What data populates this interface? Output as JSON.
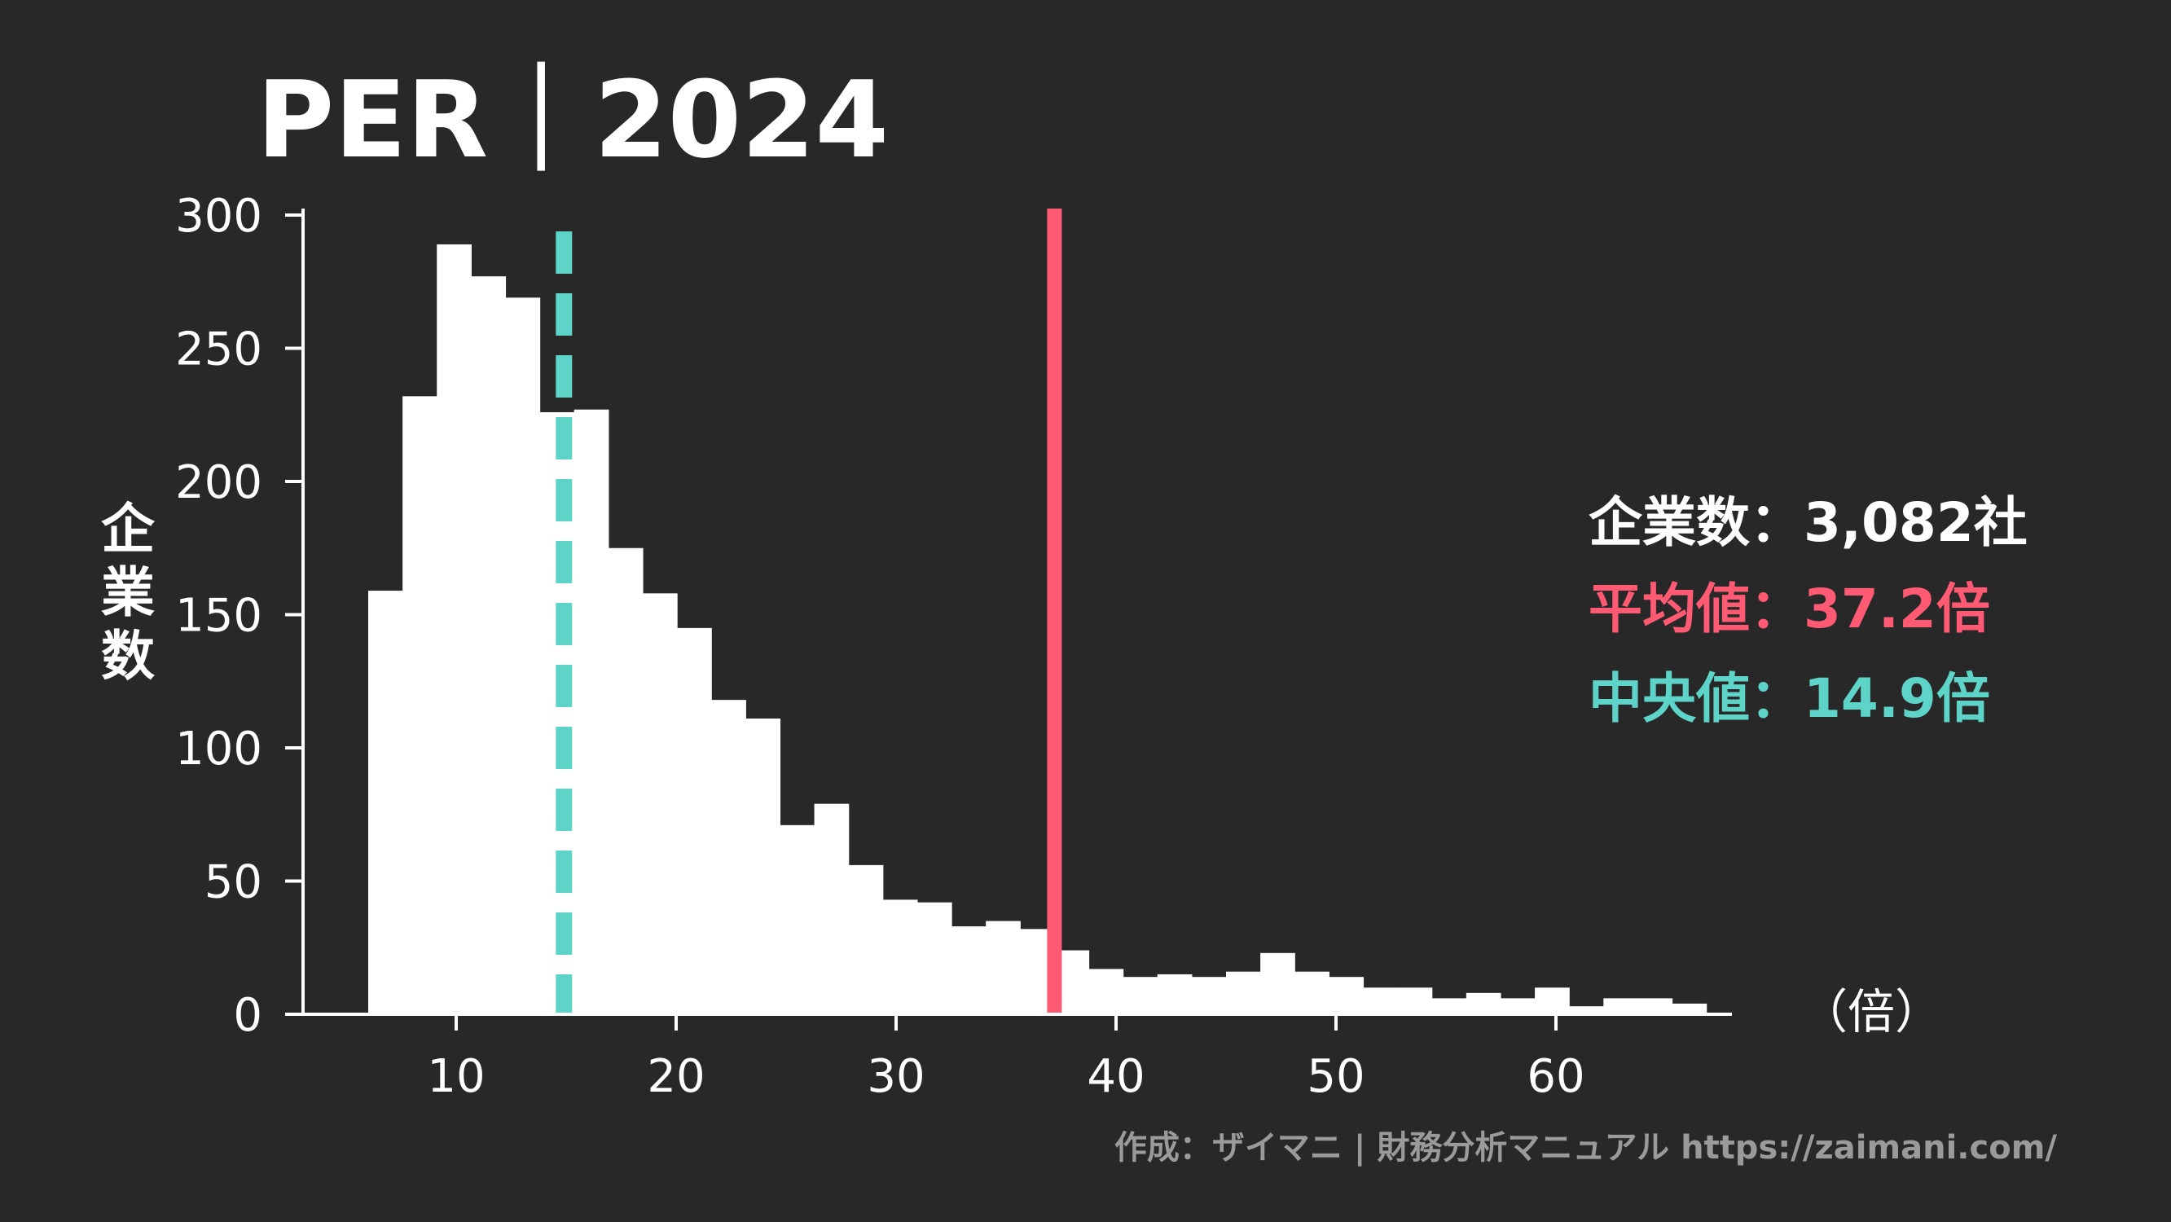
{
  "chart_data": {
    "type": "bar",
    "title": "PER｜2024",
    "ylabel": "企業数",
    "xlabel": "（倍）",
    "xlim": [
      3,
      68
    ],
    "ylim": [
      0,
      300
    ],
    "x_ticks": [
      10,
      20,
      30,
      40,
      50,
      60
    ],
    "y_ticks": [
      0,
      50,
      100,
      150,
      200,
      250,
      300
    ],
    "bin_width": 1.56,
    "bins_start": 6.0,
    "values": [
      159,
      232,
      289,
      277,
      269,
      226,
      227,
      175,
      158,
      145,
      118,
      111,
      71,
      79,
      56,
      43,
      42,
      33,
      35,
      32,
      24,
      17,
      14,
      15,
      14,
      16,
      23,
      16,
      14,
      10,
      10,
      6,
      8,
      6,
      10,
      3,
      6,
      6,
      4
    ],
    "bar_color": "#ffffff",
    "mean": {
      "label": "平均値",
      "value": 37.2,
      "display": "37.2倍",
      "color": "#ff5a73"
    },
    "median": {
      "label": "中央値",
      "value": 14.9,
      "display": "14.9倍",
      "color": "#5ed3c8"
    },
    "count": {
      "label": "企業数",
      "display": "3,082社",
      "color": "#ffffff"
    },
    "separator": "：",
    "grid": false
  },
  "credit": "作成：ザイマニ | 財務分析マニュアル https://zaimani.com/"
}
